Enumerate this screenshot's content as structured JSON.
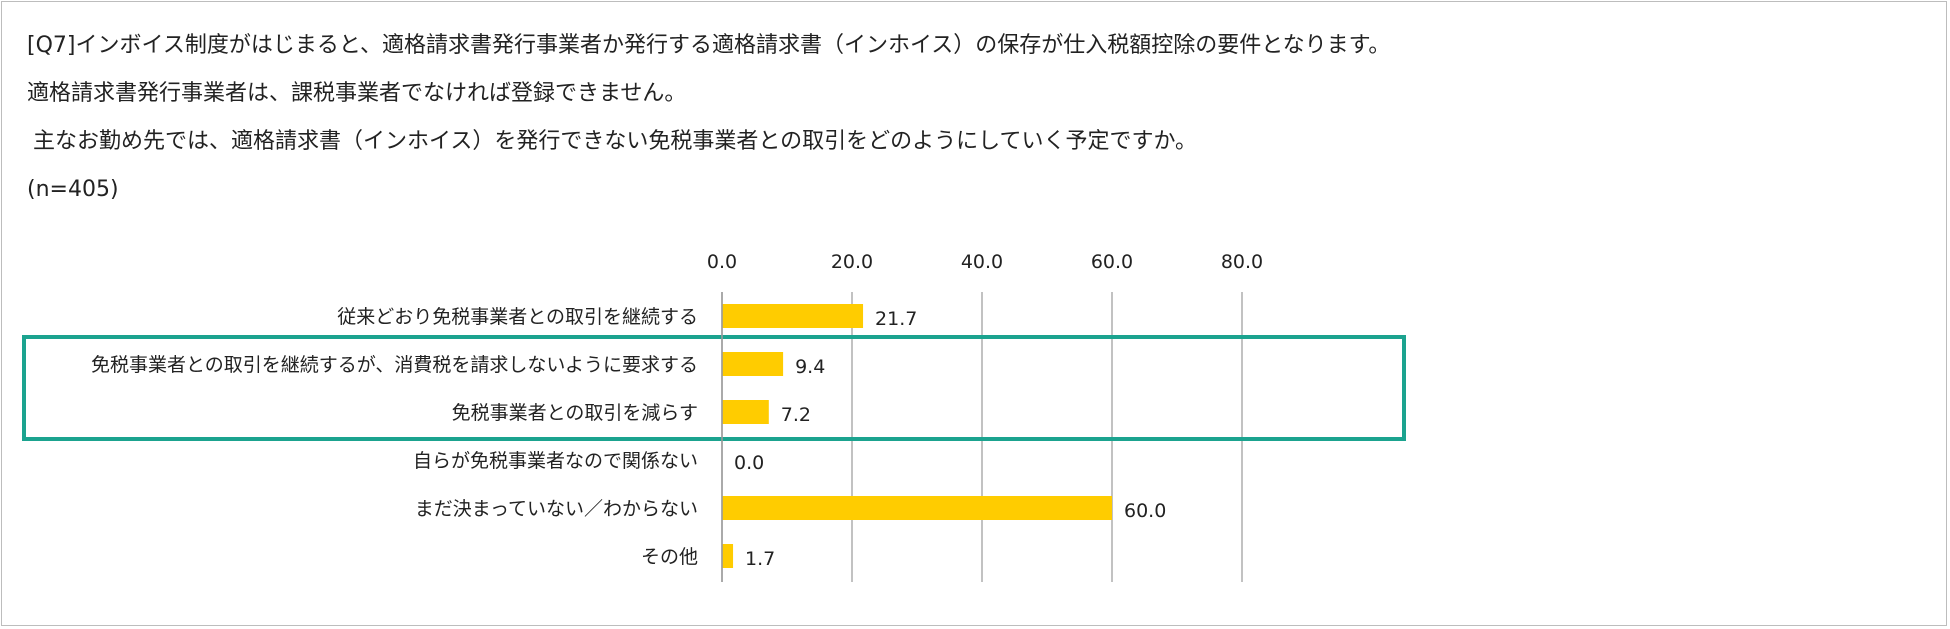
{
  "question": {
    "line1": "[Q7]インボイス制度がはじまると、適格請求書発行事業者か発行する適格請求書（インホイス）の保存が仕入税額控除の要件となります。",
    "line2": "適格請求書発行事業者は、課税事業者でなければ登録できません。",
    "line3": "主なお勤め先では、適格請求書（インホイス）を発行できない免税事業者との取引をどのようにしていく予定ですか。",
    "sample": "(n=405)"
  },
  "colors": {
    "bar": "#FFCC00",
    "highlight_box": "#1BA38F",
    "gridline": "#9a9a9a"
  },
  "chart_data": {
    "type": "bar",
    "orientation": "horizontal",
    "categories": [
      "従来どおり免税事業者との取引を継続する",
      "免税事業者との取引を継続するが、消費税を請求しないように要求する",
      "免税事業者との取引を減らす",
      "自らが免税事業者なので関係ない",
      "まだ決まっていない／わからない",
      "その他"
    ],
    "values": [
      21.7,
      9.4,
      7.2,
      0.0,
      60.0,
      1.7
    ],
    "value_labels": [
      "21.7",
      "9.4",
      "7.2",
      "0.0",
      "60.0",
      "1.7"
    ],
    "xlim": [
      0,
      80
    ],
    "x_ticks": [
      0,
      20,
      40,
      60,
      80
    ],
    "x_tick_labels": [
      "0.0",
      "20.0",
      "40.0",
      "60.0",
      "80.0"
    ],
    "x_axis_position": "top",
    "grid": true,
    "highlighted_categories": [
      1,
      2
    ]
  }
}
